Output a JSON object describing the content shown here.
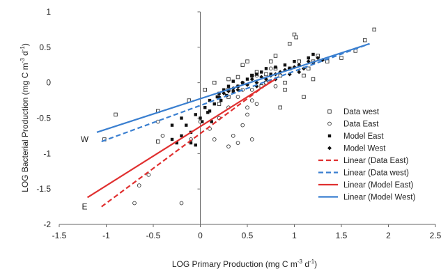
{
  "chart_data": {
    "type": "scatter",
    "xlabel": "LOG Primary Production (mg C m-3 d-1)",
    "xlabel_parts": {
      "main": "LOG Primary Production (mg C m",
      "exp1": "-3",
      "mid": " d",
      "exp2": "-1",
      "end": ")"
    },
    "ylabel": "LOG Bacterial Production (mg C m-3 d-1)",
    "ylabel_parts": {
      "main": "LOG Bacterial Production (mg C m",
      "exp1": "-3",
      "mid": " d",
      "exp2": "-1",
      "end": ")"
    },
    "xlim": [
      -1.5,
      2.5
    ],
    "ylim": [
      -2,
      1
    ],
    "x_ticks": [
      -1.5,
      -1,
      -0.5,
      0,
      0.5,
      1,
      1.5,
      2,
      2.5
    ],
    "y_ticks": [
      -2,
      -1.5,
      -1,
      -0.5,
      0,
      0.5,
      1
    ],
    "x_tick_labels": [
      "-1.5",
      "-1",
      "-0.5",
      "0",
      "0.5",
      "1",
      "1.5",
      "2",
      "2.5"
    ],
    "y_tick_labels": [
      "-2",
      "-1.5",
      "-1",
      "-0.5",
      "0",
      "0.5",
      "1"
    ],
    "grid": false,
    "legend_position": "right",
    "annotations": [
      {
        "text": "W",
        "x": -1.23,
        "y": -0.8
      },
      {
        "text": "E",
        "x": -1.23,
        "y": -1.75
      }
    ],
    "series": [
      {
        "name": "Data west",
        "kind": "points",
        "marker": "open-square",
        "color": "#333333",
        "points": [
          [
            -1.02,
            -0.8
          ],
          [
            -0.9,
            -0.45
          ],
          [
            -0.45,
            -0.4
          ],
          [
            -0.45,
            -0.83
          ],
          [
            -0.12,
            -0.25
          ],
          [
            0.05,
            -0.1
          ],
          [
            0.2,
            -0.3
          ],
          [
            0.3,
            -0.1
          ],
          [
            0.3,
            0.05
          ],
          [
            0.3,
            -0.2
          ],
          [
            0.45,
            0.25
          ],
          [
            0.5,
            0.3
          ],
          [
            0.55,
            0.1
          ],
          [
            0.6,
            0.15
          ],
          [
            0.65,
            -0.05
          ],
          [
            0.7,
            0.0
          ],
          [
            0.75,
            0.3
          ],
          [
            0.8,
            0.2
          ],
          [
            0.8,
            0.38
          ],
          [
            0.85,
            0.1
          ],
          [
            0.9,
            -0.1
          ],
          [
            0.9,
            0.0
          ],
          [
            0.95,
            0.55
          ],
          [
            0.95,
            0.2
          ],
          [
            1.0,
            0.68
          ],
          [
            1.02,
            0.64
          ],
          [
            1.05,
            0.3
          ],
          [
            1.1,
            0.1
          ],
          [
            1.1,
            -0.2
          ],
          [
            1.15,
            0.2
          ],
          [
            1.2,
            0.05
          ],
          [
            1.2,
            0.3
          ],
          [
            1.25,
            0.38
          ],
          [
            1.35,
            0.3
          ],
          [
            1.5,
            0.35
          ],
          [
            1.65,
            0.45
          ],
          [
            1.75,
            0.6
          ],
          [
            1.85,
            0.75
          ],
          [
            0.85,
            -0.35
          ],
          [
            0.7,
            0.12
          ],
          [
            0.4,
            0.08
          ],
          [
            0.15,
            0.0
          ]
        ]
      },
      {
        "name": "Data East",
        "kind": "points",
        "marker": "open-circle",
        "color": "#333333",
        "points": [
          [
            -0.7,
            -1.7
          ],
          [
            -0.65,
            -1.45
          ],
          [
            -0.55,
            -1.3
          ],
          [
            -0.45,
            -0.55
          ],
          [
            -0.4,
            -0.75
          ],
          [
            -0.2,
            -1.7
          ],
          [
            -0.1,
            -0.8
          ],
          [
            0.0,
            -0.55
          ],
          [
            0.1,
            -0.65
          ],
          [
            0.15,
            -0.8
          ],
          [
            0.2,
            -0.5
          ],
          [
            0.3,
            -0.9
          ],
          [
            0.35,
            -0.75
          ],
          [
            0.4,
            -0.85
          ],
          [
            0.4,
            -0.2
          ],
          [
            0.45,
            -0.6
          ],
          [
            0.5,
            -0.45
          ],
          [
            0.5,
            -0.35
          ],
          [
            0.55,
            -0.25
          ],
          [
            0.55,
            -0.1
          ],
          [
            0.6,
            0.1
          ],
          [
            0.6,
            -0.3
          ],
          [
            0.7,
            0.0
          ],
          [
            0.75,
            0.2
          ],
          [
            0.8,
            -0.05
          ],
          [
            0.55,
            -0.8
          ],
          [
            0.3,
            -0.35
          ],
          [
            0.45,
            -0.1
          ]
        ]
      },
      {
        "name": "Model East",
        "kind": "points",
        "marker": "filled-square",
        "color": "#111111",
        "points": [
          [
            -0.3,
            -0.8
          ],
          [
            -0.25,
            -0.85
          ],
          [
            -0.2,
            -0.75
          ],
          [
            -0.15,
            -0.6
          ],
          [
            -0.1,
            -0.7
          ],
          [
            -0.1,
            -0.85
          ],
          [
            -0.05,
            -0.45
          ],
          [
            -0.05,
            -0.88
          ],
          [
            0.0,
            -0.5
          ],
          [
            0.02,
            -0.55
          ],
          [
            0.05,
            -0.35
          ],
          [
            0.08,
            -0.42
          ],
          [
            0.1,
            -0.25
          ],
          [
            0.1,
            -0.4
          ],
          [
            0.15,
            -0.3
          ],
          [
            0.18,
            -0.2
          ],
          [
            0.2,
            -0.15
          ],
          [
            0.22,
            -0.25
          ],
          [
            0.25,
            -0.1
          ],
          [
            0.28,
            -0.18
          ],
          [
            0.3,
            -0.05
          ],
          [
            0.35,
            -0.12
          ],
          [
            0.35,
            0.02
          ],
          [
            0.4,
            -0.05
          ],
          [
            0.45,
            0.0
          ],
          [
            0.5,
            0.05
          ],
          [
            0.55,
            0.1
          ],
          [
            0.6,
            0.12
          ],
          [
            0.65,
            0.15
          ],
          [
            0.7,
            0.2
          ],
          [
            0.75,
            0.12
          ],
          [
            0.8,
            0.22
          ],
          [
            0.9,
            0.25
          ],
          [
            1.0,
            0.3
          ],
          [
            1.15,
            0.35
          ],
          [
            1.2,
            0.4
          ],
          [
            -0.3,
            -0.6
          ],
          [
            -0.2,
            -0.5
          ],
          [
            0.12,
            -0.55
          ]
        ]
      },
      {
        "name": "Model West",
        "kind": "points",
        "marker": "filled-diamond",
        "color": "#111111",
        "points": [
          [
            0.2,
            -0.2
          ],
          [
            0.25,
            -0.15
          ],
          [
            0.3,
            -0.12
          ],
          [
            0.35,
            -0.08
          ],
          [
            0.4,
            -0.05
          ],
          [
            0.45,
            0.0
          ],
          [
            0.5,
            -0.03
          ],
          [
            0.55,
            0.05
          ],
          [
            0.6,
            0.0
          ],
          [
            0.65,
            0.08
          ],
          [
            0.7,
            0.05
          ],
          [
            0.75,
            0.1
          ],
          [
            0.8,
            0.12
          ],
          [
            0.85,
            0.15
          ],
          [
            0.9,
            0.18
          ],
          [
            0.95,
            0.2
          ],
          [
            1.0,
            0.22
          ],
          [
            1.05,
            0.25
          ],
          [
            1.1,
            0.2
          ],
          [
            1.15,
            0.3
          ],
          [
            1.2,
            0.28
          ],
          [
            1.25,
            0.35
          ],
          [
            1.3,
            0.32
          ],
          [
            0.8,
            0.05
          ],
          [
            0.6,
            -0.05
          ],
          [
            0.4,
            -0.1
          ],
          [
            0.95,
            0.12
          ],
          [
            1.05,
            0.15
          ]
        ]
      },
      {
        "name": "Linear (Data East)",
        "kind": "line",
        "dash": "7,4",
        "color": "#e03030",
        "points": [
          [
            -1.05,
            -1.75
          ],
          [
            0.78,
            0.05
          ]
        ]
      },
      {
        "name": "Linear (Data west)",
        "kind": "line",
        "dash": "7,4",
        "color": "#3a7fd0",
        "points": [
          [
            -1.05,
            -0.83
          ],
          [
            1.8,
            0.55
          ]
        ]
      },
      {
        "name": "Linear (Model East)",
        "kind": "line",
        "dash": "",
        "color": "#e03030",
        "points": [
          [
            -1.2,
            -1.62
          ],
          [
            0.8,
            0.05
          ]
        ]
      },
      {
        "name": "Linear (Model West)",
        "kind": "line",
        "dash": "",
        "color": "#3a7fd0",
        "points": [
          [
            -1.1,
            -0.7
          ],
          [
            1.8,
            0.55
          ]
        ]
      }
    ]
  }
}
